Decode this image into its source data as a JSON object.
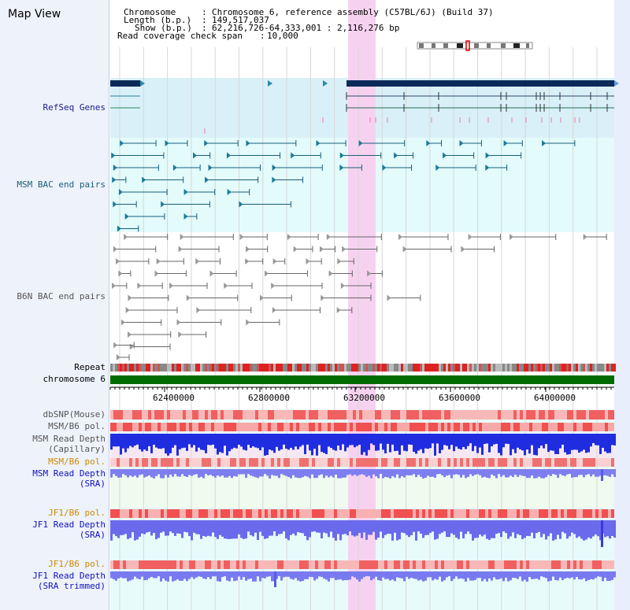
{
  "title": "Map View",
  "info": {
    "chromosome_label": "Chromosome",
    "chromosome_value": "Chromosome 6, reference assembly (C57BL/6J) (Build 37)",
    "length_label": "Length (b.p.)",
    "length_value": "149,517,037",
    "show_label": "Show (b.p.)",
    "show_value": "62,216,726-64,333,001 : 2,116,276 bp",
    "coverage_label": "Read coverage check span",
    "coverage_value": "10,000"
  },
  "tracks": {
    "refseq": "RefSeq Genes",
    "msm_bac": "MSM BAC end pairs",
    "b6n_bac": "B6N BAC end pairs",
    "repeat": "Repeat",
    "chromosome": "chromosome 6",
    "dbsnp": "dbSNP(Mouse)",
    "msm_b6_pol_1": "MSM/B6 pol.",
    "msm_read_depth_cap_1": "MSM Read Depth",
    "msm_read_depth_cap_2": "(Capillary)",
    "msm_b6_pol_2": "MSM/B6 pol.",
    "msm_read_depth_sra_1": "MSM Read Depth",
    "msm_read_depth_sra_2": "(SRA)",
    "jf1_b6_pol_1": "JF1/B6 pol.",
    "jf1_read_depth_sra_1": "JF1 Read Depth",
    "jf1_read_depth_sra_2": "(SRA)",
    "jf1_b6_pol_2": "JF1/B6 pol.",
    "jf1_read_depth_trim_1": "JF1 Read Depth",
    "jf1_read_depth_trim_2": "(SRA trimmed)"
  },
  "axis_ticks": [
    "62400000",
    "62800000",
    "63200000",
    "63600000",
    "64000000"
  ],
  "colors": {
    "highlight": "#f7d2f0",
    "refseq_bg": "#d9f0f8",
    "bac_bg": "#e3fbfb",
    "repeat_red": "#dd2222",
    "chromosome_green": "#006b00",
    "depth_blue": "#1f2ce0",
    "depth_light": "#7e7ef0"
  }
}
